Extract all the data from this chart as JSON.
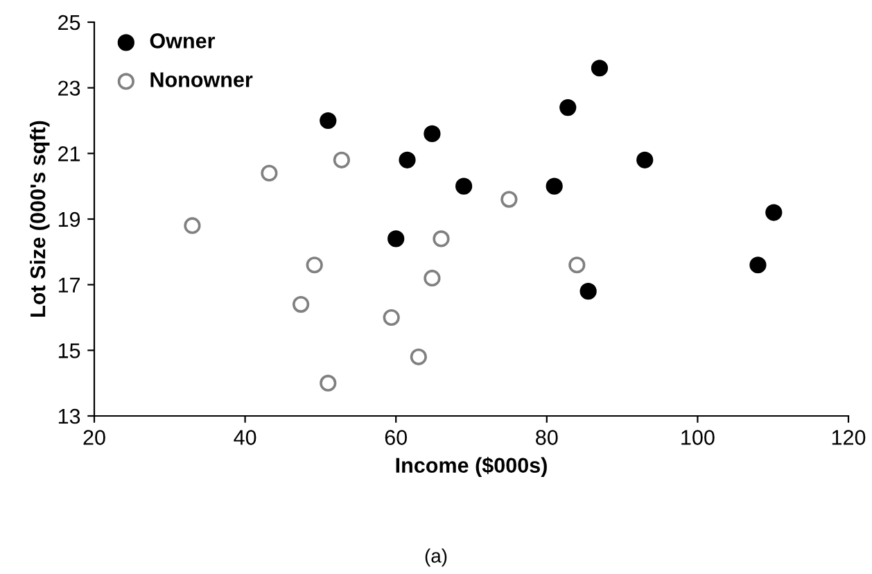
{
  "chart_data": {
    "type": "scatter",
    "xlabel": "Income ($000s)",
    "ylabel": "Lot Size (000's sqft)",
    "annotations": [
      "(a)"
    ],
    "xlim": [
      20,
      120
    ],
    "xticks": [
      20,
      40,
      60,
      80,
      100,
      120
    ],
    "ylim": [
      13,
      25
    ],
    "yticks": [
      13,
      15,
      17,
      19,
      21,
      23,
      25
    ],
    "grid": false,
    "legend": "top left",
    "marker": "circle",
    "series": [
      {
        "name": "Owner",
        "color": "#000000",
        "x": [
          60.0,
          85.5,
          64.8,
          61.5,
          87.0,
          110.1,
          108.0,
          82.8,
          69.0,
          93.0,
          51.0,
          81.0
        ],
        "values": [
          18.4,
          16.8,
          21.6,
          20.8,
          23.6,
          19.2,
          17.6,
          22.4,
          20.0,
          20.8,
          22.0,
          20.0
        ]
      },
      {
        "name": "Nonowner",
        "color": "#808080",
        "x": [
          75.0,
          52.8,
          64.8,
          43.2,
          84.0,
          49.2,
          59.4,
          66.0,
          47.4,
          33.0,
          51.0,
          63.0
        ],
        "values": [
          19.6,
          20.8,
          17.2,
          20.4,
          17.6,
          17.6,
          16.0,
          18.4,
          16.4,
          18.8,
          14.0,
          14.8
        ]
      }
    ]
  }
}
